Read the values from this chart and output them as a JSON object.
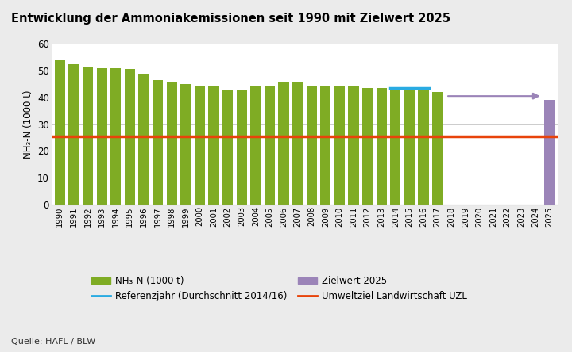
{
  "title": "Entwicklung der Ammoniakemissionen seit 1990 mit Zielwert 2025",
  "ylabel": "NH₃-N (1000 t)",
  "source": "Quelle: HAFL / BLW",
  "years_data": [
    1990,
    1991,
    1992,
    1993,
    1994,
    1995,
    1996,
    1997,
    1998,
    1999,
    2000,
    2001,
    2002,
    2003,
    2004,
    2005,
    2006,
    2007,
    2008,
    2009,
    2010,
    2011,
    2012,
    2013,
    2014,
    2015,
    2016,
    2017,
    2025
  ],
  "values_data": [
    54.0,
    52.5,
    51.5,
    51.0,
    50.8,
    50.7,
    49.0,
    46.5,
    46.0,
    45.0,
    44.5,
    44.5,
    43.0,
    43.0,
    44.0,
    44.5,
    45.5,
    45.5,
    44.5,
    44.0,
    44.5,
    44.0,
    43.5,
    43.5,
    43.5,
    43.5,
    42.5,
    42.0,
    39.0
  ],
  "bar_color_green": "#7fac24",
  "bar_color_purple": "#9b84b8",
  "ref_line_color": "#29abe2",
  "uzl_line_color": "#e8430a",
  "uzl_value": 25.5,
  "ref_value": 43.5,
  "ref_years": [
    2014,
    2016
  ],
  "arrow_color": "#9b84b8",
  "ylim": [
    0,
    60
  ],
  "yticks": [
    0,
    10,
    20,
    30,
    40,
    50,
    60
  ],
  "legend_labels": [
    "NH₃-N (1000 t)",
    "Zielwert 2025",
    "Referenzjahr (Durchschnitt 2014/16)",
    "Umweltziel Landwirtschaft UZL"
  ],
  "background_color": "#ebebeb",
  "plot_bg_color": "#ffffff",
  "all_years": [
    1990,
    1991,
    1992,
    1993,
    1994,
    1995,
    1996,
    1997,
    1998,
    1999,
    2000,
    2001,
    2002,
    2003,
    2004,
    2005,
    2006,
    2007,
    2008,
    2009,
    2010,
    2011,
    2012,
    2013,
    2014,
    2015,
    2016,
    2017,
    2018,
    2019,
    2020,
    2021,
    2022,
    2023,
    2024,
    2025
  ]
}
